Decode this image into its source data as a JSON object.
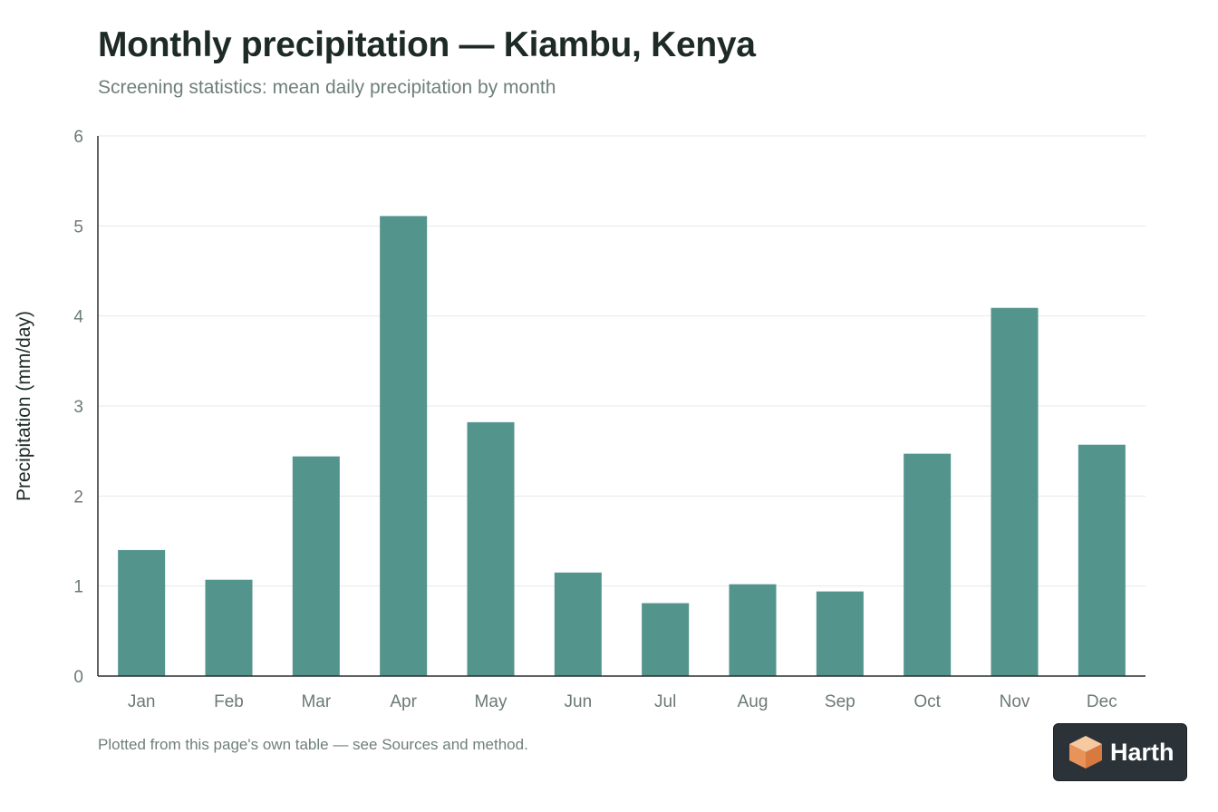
{
  "header": {
    "title": "Monthly precipitation — Kiambu, Kenya",
    "subtitle": "Screening statistics: mean daily precipitation by month"
  },
  "chart_data": {
    "type": "bar",
    "title": "Monthly precipitation — Kiambu, Kenya",
    "subtitle": "Screening statistics: mean daily precipitation by month",
    "xlabel": "",
    "ylabel": "Precipitation (mm/day)",
    "categories": [
      "Jan",
      "Feb",
      "Mar",
      "Apr",
      "May",
      "Jun",
      "Jul",
      "Aug",
      "Sep",
      "Oct",
      "Nov",
      "Dec"
    ],
    "values": [
      1.4,
      1.07,
      2.44,
      5.11,
      2.82,
      1.15,
      0.81,
      1.02,
      0.94,
      2.47,
      4.09,
      2.57
    ],
    "ylim": [
      0,
      6
    ],
    "yticks": [
      0,
      1,
      2,
      3,
      4,
      5,
      6
    ],
    "grid": true,
    "bar_color": "#53948c"
  },
  "footnote": "Plotted from this page's own table — see Sources and method.",
  "logo": {
    "text": "Harth",
    "icon": "cube-icon"
  }
}
